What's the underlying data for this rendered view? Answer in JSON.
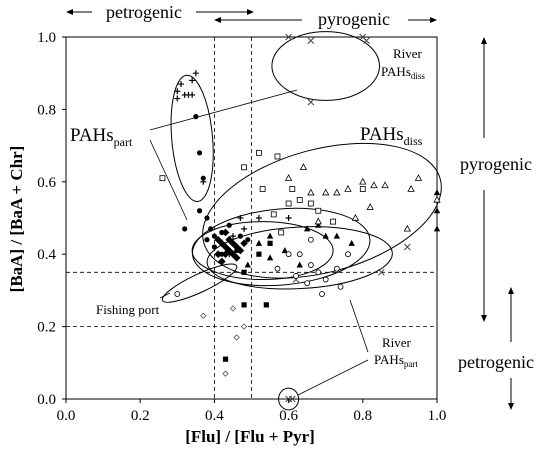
{
  "chart_data": {
    "type": "scatter",
    "title": "",
    "xlabel": "[Flu] / [Flu + Pyr]",
    "ylabel": "[BaA] / [BaA + Chr]",
    "xlim": [
      0,
      1
    ],
    "ylim": [
      0,
      1
    ],
    "x_ticks": [
      "0.0",
      "0.2",
      "0.4",
      "0.6",
      "0.8",
      "1.0"
    ],
    "y_ticks": [
      "0.0",
      "0.2",
      "0.4",
      "0.6",
      "0.8",
      "1.0"
    ],
    "grid": false,
    "reference_lines": {
      "vertical": [
        0.4,
        0.5
      ],
      "horizontal": [
        0.2,
        0.35
      ]
    },
    "top_labels": {
      "petrogenic": "petrogenic",
      "pyrogenic": "pyrogenic"
    },
    "right_labels": {
      "pyrogenic": "pyrogenic",
      "petrogenic": "petrogenic"
    },
    "annotations": {
      "pahs_part_main": "PAHs",
      "pahs_part_sub": "part",
      "pahs_diss_main": "PAHs",
      "pahs_diss_sub": "diss",
      "river_diss_line1": "River",
      "river_diss_main": "PAHs",
      "river_diss_sub": "diss",
      "fishing_port": "Fishing port",
      "river_part_line1": "River",
      "river_part_main": "PAHs",
      "river_part_sub": "part"
    },
    "series": [
      {
        "marker": "plus",
        "points": [
          [
            0.31,
            0.87
          ],
          [
            0.3,
            0.85
          ],
          [
            0.32,
            0.84
          ],
          [
            0.33,
            0.84
          ],
          [
            0.34,
            0.88
          ],
          [
            0.35,
            0.9
          ],
          [
            0.34,
            0.84
          ],
          [
            0.3,
            0.83
          ],
          [
            0.37,
            0.6
          ],
          [
            0.43,
            0.42
          ],
          [
            0.44,
            0.4
          ],
          [
            0.45,
            0.45
          ],
          [
            0.47,
            0.5
          ],
          [
            0.52,
            0.5
          ],
          [
            0.6,
            0.5
          ],
          [
            0.48,
            0.47
          ]
        ]
      },
      {
        "marker": "dot",
        "points": [
          [
            0.35,
            0.78
          ],
          [
            0.36,
            0.68
          ],
          [
            0.37,
            0.61
          ],
          [
            0.32,
            0.47
          ],
          [
            0.36,
            0.52
          ],
          [
            0.38,
            0.5
          ],
          [
            0.39,
            0.47
          ],
          [
            0.38,
            0.44
          ],
          [
            0.4,
            0.42
          ],
          [
            0.42,
            0.46
          ],
          [
            0.42,
            0.4
          ],
          [
            0.44,
            0.48
          ],
          [
            0.46,
            0.41
          ],
          [
            0.47,
            0.45
          ],
          [
            0.49,
            0.44
          ],
          [
            0.4,
            0.45
          ],
          [
            0.6,
            0.4
          ]
        ]
      },
      {
        "marker": "diamond",
        "points": [
          [
            0.41,
            0.44
          ],
          [
            0.42,
            0.43
          ],
          [
            0.43,
            0.42
          ],
          [
            0.43,
            0.4
          ],
          [
            0.44,
            0.41
          ],
          [
            0.44,
            0.44
          ],
          [
            0.45,
            0.43
          ],
          [
            0.45,
            0.4
          ],
          [
            0.46,
            0.42
          ],
          [
            0.47,
            0.41
          ],
          [
            0.46,
            0.39
          ],
          [
            0.42,
            0.38
          ],
          [
            0.48,
            0.43
          ],
          [
            0.43,
            0.46
          ],
          [
            0.41,
            0.4
          ]
        ]
      },
      {
        "marker": "square",
        "points": [
          [
            0.48,
            0.35
          ],
          [
            0.52,
            0.4
          ],
          [
            0.48,
            0.26
          ],
          [
            0.54,
            0.26
          ],
          [
            0.43,
            0.11
          ],
          [
            0.55,
            0.43
          ]
        ]
      },
      {
        "marker": "triangle",
        "points": [
          [
            0.49,
            0.37
          ],
          [
            0.52,
            0.43
          ],
          [
            0.55,
            0.39
          ],
          [
            0.59,
            0.41
          ],
          [
            0.63,
            0.37
          ],
          [
            0.65,
            0.47
          ],
          [
            0.7,
            0.45
          ],
          [
            0.73,
            0.45
          ],
          [
            0.77,
            0.43
          ],
          [
            0.55,
            0.45
          ],
          [
            0.68,
            0.48
          ],
          [
            0.72,
            0.49
          ],
          [
            1.0,
            0.57
          ],
          [
            1.0,
            0.52
          ],
          [
            1.0,
            0.47
          ]
        ]
      },
      {
        "marker": "open-square",
        "points": [
          [
            0.26,
            0.61
          ],
          [
            0.48,
            0.64
          ],
          [
            0.52,
            0.68
          ],
          [
            0.57,
            0.67
          ],
          [
            0.61,
            0.58
          ],
          [
            0.53,
            0.58
          ],
          [
            0.6,
            0.54
          ],
          [
            0.63,
            0.55
          ],
          [
            0.66,
            0.54
          ],
          [
            0.68,
            0.52
          ],
          [
            0.72,
            0.49
          ],
          [
            0.8,
            0.58
          ],
          [
            0.58,
            0.46
          ],
          [
            0.56,
            0.51
          ]
        ]
      },
      {
        "marker": "open-triangle",
        "points": [
          [
            0.7,
            0.57
          ],
          [
            0.73,
            0.57
          ],
          [
            0.76,
            0.58
          ],
          [
            0.8,
            0.6
          ],
          [
            0.83,
            0.59
          ],
          [
            0.86,
            0.59
          ],
          [
            0.93,
            0.58
          ],
          [
            0.95,
            0.61
          ],
          [
            0.78,
            0.5
          ],
          [
            0.82,
            0.53
          ],
          [
            0.66,
            0.57
          ],
          [
            0.6,
            0.61
          ],
          [
            0.64,
            0.64
          ],
          [
            0.68,
            0.49
          ],
          [
            0.92,
            0.47
          ],
          [
            1.0,
            0.55
          ]
        ]
      },
      {
        "marker": "open-circle",
        "points": [
          [
            0.3,
            0.29
          ],
          [
            0.6,
            0.4
          ],
          [
            0.63,
            0.4
          ],
          [
            0.66,
            0.37
          ],
          [
            0.68,
            0.35
          ],
          [
            0.7,
            0.33
          ],
          [
            0.73,
            0.36
          ],
          [
            0.76,
            0.4
          ],
          [
            0.69,
            0.29
          ],
          [
            0.65,
            0.32
          ],
          [
            0.62,
            0.34
          ],
          [
            0.57,
            0.36
          ],
          [
            0.74,
            0.31
          ],
          [
            0.66,
            0.44
          ]
        ]
      },
      {
        "marker": "x",
        "points": [
          [
            0.6,
            1.0
          ],
          [
            0.66,
            0.99
          ],
          [
            0.8,
            1.0
          ],
          [
            0.81,
            0.99
          ],
          [
            0.66,
            0.82
          ],
          [
            0.62,
            0.33
          ],
          [
            0.85,
            0.35
          ],
          [
            0.92,
            0.42
          ],
          [
            0.6,
            0.0
          ],
          [
            0.61,
            0.0
          ]
        ]
      },
      {
        "marker": "small-diamond",
        "points": [
          [
            0.37,
            0.23
          ],
          [
            0.43,
            0.07
          ],
          [
            0.45,
            0.25
          ],
          [
            0.46,
            0.17
          ],
          [
            0.48,
            0.2
          ]
        ]
      }
    ],
    "ellipses": [
      {
        "name": "PAHs part (left)",
        "cx": 0.34,
        "cy": 0.72,
        "rx": 0.055,
        "ry": 0.175,
        "rotate": -5
      },
      {
        "name": "PAHs diss (large)",
        "cx": 0.69,
        "cy": 0.52,
        "rx": 0.33,
        "ry": 0.17,
        "rotate": -15
      },
      {
        "name": "River PAHs diss",
        "cx": 0.7,
        "cy": 0.92,
        "rx": 0.145,
        "ry": 0.095,
        "rotate": 0
      },
      {
        "name": "mid cluster 1",
        "cx": 0.58,
        "cy": 0.42,
        "rx": 0.24,
        "ry": 0.105,
        "rotate": -5
      },
      {
        "name": "mid cluster 2",
        "cx": 0.63,
        "cy": 0.39,
        "rx": 0.25,
        "ry": 0.085,
        "rotate": -3
      },
      {
        "name": "mid cluster 3",
        "cx": 0.53,
        "cy": 0.41,
        "rx": 0.19,
        "ry": 0.08,
        "rotate": 0
      },
      {
        "name": "fishing port",
        "cx": 0.36,
        "cy": 0.32,
        "rx": 0.11,
        "ry": 0.025,
        "rotate": -25
      },
      {
        "name": "river part",
        "cx": 0.6,
        "cy": 0.0,
        "rx": 0.027,
        "ry": 0.03,
        "rotate": 0
      }
    ]
  }
}
